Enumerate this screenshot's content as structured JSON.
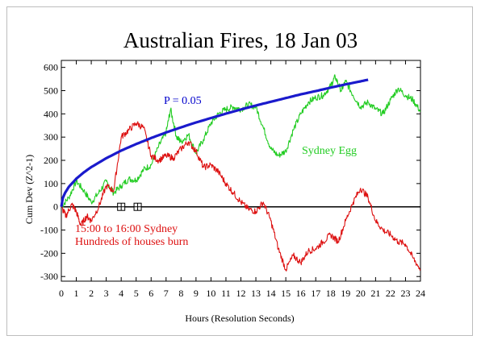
{
  "chart_data": {
    "type": "line",
    "title": "Australian Fires, 18 Jan 03",
    "xlabel": "Hours (Resolution Seconds)",
    "ylabel": "Cum Dev (Z^2-1)",
    "xlim": [
      0,
      24
    ],
    "ylim": [
      -320,
      630
    ],
    "x_ticks": [
      0,
      1,
      2,
      3,
      4,
      5,
      6,
      7,
      8,
      9,
      10,
      11,
      12,
      13,
      14,
      15,
      16,
      17,
      18,
      19,
      20,
      21,
      22,
      23,
      24
    ],
    "y_ticks": [
      -300,
      -200,
      -100,
      0,
      100,
      200,
      300,
      400,
      500,
      600
    ],
    "series": [
      {
        "name": "Sydney Egg",
        "color": "#22cc22",
        "x": [
          0,
          0.5,
          1,
          1.5,
          2,
          2.5,
          3,
          3.5,
          4,
          4.5,
          5,
          5.5,
          6,
          6.5,
          7,
          7.3,
          7.7,
          8,
          8.5,
          9,
          9.5,
          10,
          10.5,
          11,
          11.5,
          12,
          12.5,
          13,
          13.5,
          14,
          14.5,
          15,
          15.5,
          16,
          16.5,
          17,
          17.5,
          18,
          18.3,
          18.7,
          19,
          19.5,
          20,
          20.5,
          21,
          21.5,
          22,
          22.5,
          23,
          23.5,
          24
        ],
        "y": [
          0,
          40,
          110,
          70,
          20,
          60,
          110,
          60,
          90,
          120,
          115,
          160,
          180,
          260,
          320,
          420,
          300,
          280,
          310,
          230,
          290,
          360,
          400,
          420,
          430,
          420,
          440,
          430,
          340,
          250,
          220,
          240,
          330,
          400,
          450,
          470,
          480,
          520,
          560,
          500,
          540,
          480,
          430,
          450,
          420,
          400,
          460,
          510,
          480,
          460,
          410
        ]
      },
      {
        "name": "Hundreds of houses burn",
        "color": "#dd1111",
        "x": [
          0,
          0.3,
          0.7,
          1,
          1.3,
          1.7,
          2,
          2.5,
          3,
          3.5,
          4,
          4.5,
          5,
          5.5,
          6,
          6.5,
          7,
          7.5,
          8,
          8.5,
          9,
          9.5,
          10,
          10.5,
          11,
          11.5,
          12,
          12.5,
          13,
          13.5,
          14,
          14.5,
          15,
          15.5,
          16,
          16.5,
          17,
          17.5,
          18,
          18.5,
          19,
          19.5,
          20,
          20.5,
          21,
          21.5,
          22,
          22.5,
          23,
          23.5,
          24
        ],
        "y": [
          0,
          -40,
          10,
          -20,
          -80,
          -40,
          -60,
          0,
          90,
          70,
          300,
          330,
          360,
          340,
          220,
          200,
          220,
          210,
          250,
          280,
          240,
          170,
          180,
          150,
          100,
          60,
          20,
          -10,
          -20,
          20,
          -60,
          -180,
          -270,
          -210,
          -240,
          -190,
          -180,
          -150,
          -120,
          -150,
          -60,
          20,
          80,
          40,
          -60,
          -100,
          -120,
          -150,
          -160,
          -220,
          -270
        ]
      },
      {
        "name": "P = 0.05",
        "color": "#1a1acc",
        "x": [
          0,
          0.1,
          0.25,
          0.5,
          1,
          1.5,
          2,
          3,
          4,
          5,
          6,
          7,
          8,
          9,
          10,
          11,
          12,
          13,
          14,
          15,
          16,
          17,
          18,
          19,
          20,
          20.5
        ],
        "y": [
          0,
          38,
          60,
          86,
          121,
          148,
          171,
          209,
          242,
          270,
          296,
          320,
          342,
          363,
          382,
          401,
          419,
          436,
          452,
          468,
          484,
          498,
          513,
          527,
          540,
          547
        ]
      }
    ],
    "annotations": {
      "p_label": "P = 0.05",
      "egg_label": "Sydney Egg",
      "event_line1": "15:00 to 16:00 Sydney",
      "event_line2": "Hundreds of houses burn"
    },
    "event_markers_hours": [
      4,
      5.1
    ],
    "grid": false,
    "legend": "none"
  }
}
